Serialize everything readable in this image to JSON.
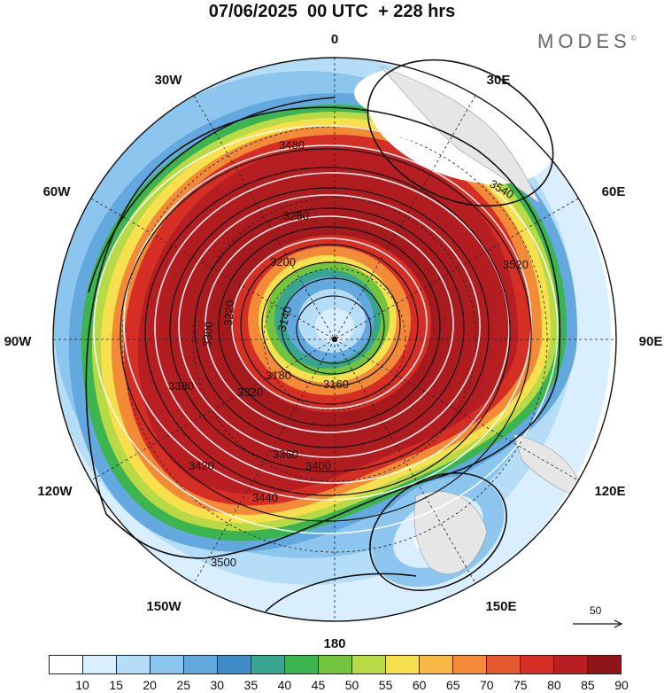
{
  "title": "07/06/2025  00 UTC  + 228 hrs",
  "brand": "MODES",
  "brand_mark": "©",
  "longitude_labels": [
    "0",
    "30E",
    "60E",
    "90E",
    "120E",
    "150E",
    "180",
    "150W",
    "120W",
    "90W",
    "60W",
    "30W"
  ],
  "contour_labels": [
    "3140",
    "3160",
    "3180",
    "3200",
    "3220",
    "3280",
    "3300",
    "3320",
    "3360",
    "3380",
    "3400",
    "3420",
    "3440",
    "3480",
    "3500",
    "3520",
    "3540"
  ],
  "reference_vector": {
    "label": "50",
    "icon": "arrow-right-icon"
  },
  "colorbar": {
    "ticks": [
      "10",
      "15",
      "20",
      "25",
      "30",
      "35",
      "40",
      "45",
      "50",
      "55",
      "60",
      "65",
      "70",
      "75",
      "80",
      "85",
      "90"
    ],
    "colors": [
      "#ffffff",
      "#d9efff",
      "#b5ddf8",
      "#8cc6ee",
      "#63a9df",
      "#3f8cc9",
      "#3aa58f",
      "#3cb551",
      "#72c43d",
      "#b8da46",
      "#f6e04e",
      "#f9b746",
      "#f38a38",
      "#e4582e",
      "#d42e25",
      "#b81e22",
      "#8f1519"
    ]
  }
}
